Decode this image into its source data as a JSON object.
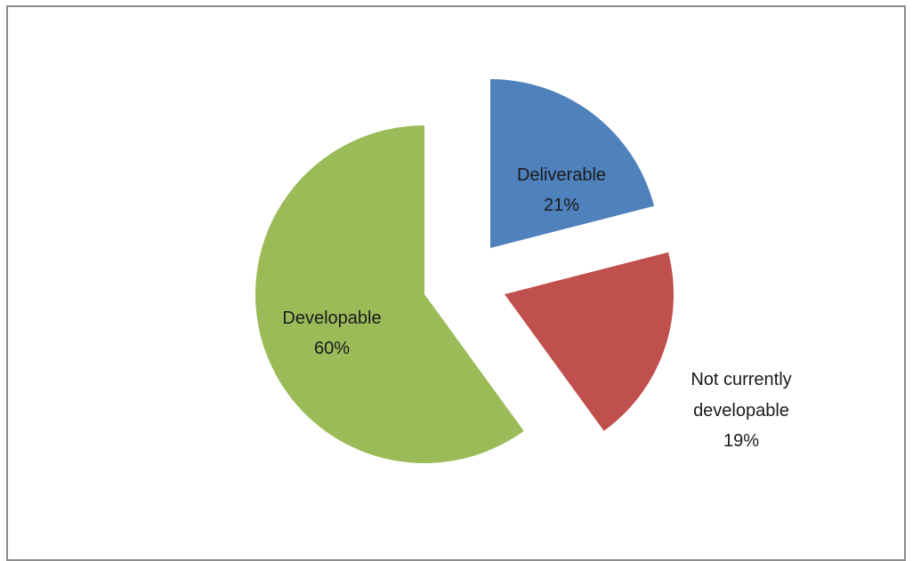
{
  "chart_data": {
    "type": "pie",
    "exploded": true,
    "slices": [
      {
        "label": "Deliverable",
        "percent_label": "21%",
        "value": 21,
        "color": "#4f81bd"
      },
      {
        "label": "Not currently developable",
        "label_lines": [
          "Not currently",
          "developable"
        ],
        "percent_label": "19%",
        "value": 19,
        "color": "#c0504d"
      },
      {
        "label": "Developable",
        "percent_label": "60%",
        "value": 60,
        "color": "#9bbb59"
      }
    ],
    "legend": "none"
  }
}
